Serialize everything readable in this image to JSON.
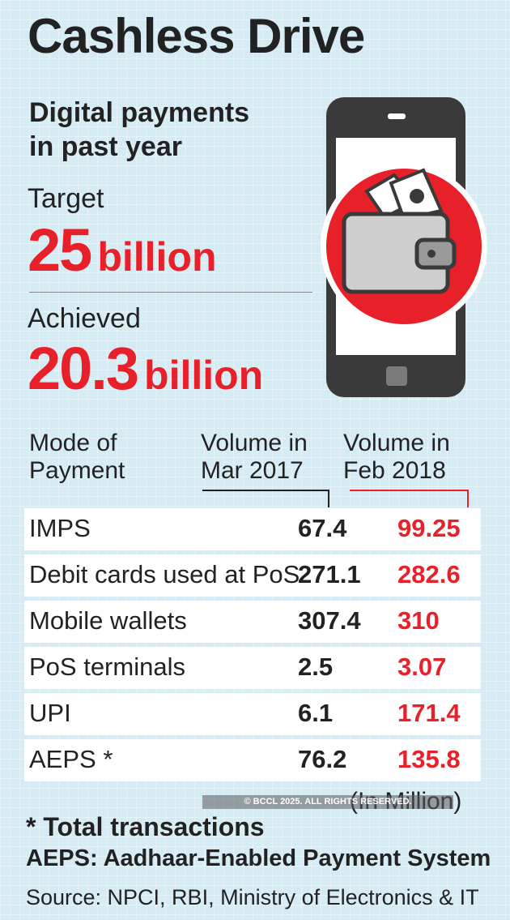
{
  "header": {
    "title": "Cashless Drive",
    "subtitle_line1": "Digital payments",
    "subtitle_line2": "in past year"
  },
  "target": {
    "label": "Target",
    "value": "25",
    "unit": "billion"
  },
  "achieved": {
    "label": "Achieved",
    "value": "20.3",
    "unit": "billion"
  },
  "icon": {
    "name": "phone-wallet-icon"
  },
  "colors": {
    "accent": "#e8202a",
    "text": "#222222",
    "background": "#d6ecf5"
  },
  "chart_data": {
    "type": "table",
    "columns": [
      "Mode of Payment",
      "Volume in Mar 2017",
      "Volume in Feb 2018"
    ],
    "column_heads": {
      "mode": [
        "Mode of",
        "Payment"
      ],
      "mar2017": [
        "Volume in",
        "Mar 2017"
      ],
      "feb2018": [
        "Volume in",
        "Feb 2018"
      ]
    },
    "rows": [
      {
        "mode": "IMPS",
        "mar2017": "67.4",
        "feb2018": "99.25"
      },
      {
        "mode": "Debit cards used at PoS",
        "mar2017": "271.1",
        "feb2018": "282.6"
      },
      {
        "mode": "Mobile wallets",
        "mar2017": "307.4",
        "feb2018": "310"
      },
      {
        "mode": "PoS terminals",
        "mar2017": "2.5",
        "feb2018": "3.07"
      },
      {
        "mode": "UPI",
        "mar2017": "6.1",
        "feb2018": "171.4"
      },
      {
        "mode": "AEPS *",
        "mar2017": "76.2",
        "feb2018": "135.8"
      }
    ],
    "unit_note": "(In Million)"
  },
  "footer": {
    "note": "* Total transactions",
    "definition": "AEPS: Aadhaar-Enabled Payment System",
    "source": "Source: NPCI, RBI, Ministry of Electronics & IT",
    "copyright": "© BCCL 2025. ALL RIGHTS RESERVED."
  }
}
